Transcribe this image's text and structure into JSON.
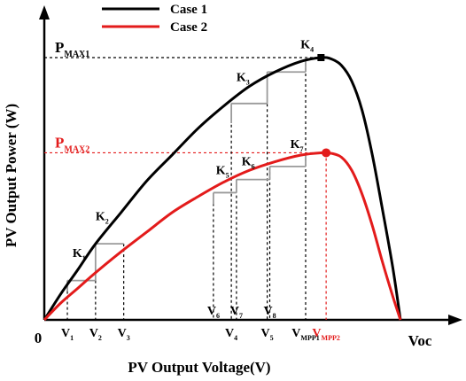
{
  "chart_data": {
    "type": "line",
    "xlabel": "PV Output Voltage(V)",
    "ylabel": "PV Output Power (W)",
    "colors": {
      "case1": "#000000",
      "case2": "#e31b1b",
      "steps": "#9a9a9a"
    },
    "legend": {
      "placement": "top",
      "entries": [
        {
          "label": "Case 1",
          "color": "#000000"
        },
        {
          "label": "Case 2",
          "color": "#e31b1b"
        }
      ]
    },
    "axis_labels": {
      "origin": "0",
      "voc": "Voc"
    },
    "series": [
      {
        "name": "Case 1",
        "color": "#000000",
        "points": [
          [
            0,
            0
          ],
          [
            6.5,
            10
          ],
          [
            13,
            19
          ],
          [
            20,
            29
          ],
          [
            30,
            41
          ],
          [
            40,
            53
          ],
          [
            50,
            63
          ],
          [
            60,
            73
          ],
          [
            70,
            81.5
          ],
          [
            80,
            89
          ],
          [
            90,
            94.5
          ],
          [
            100,
            98.5
          ],
          [
            108,
            100
          ],
          [
            112,
            99.5
          ],
          [
            116,
            97
          ],
          [
            120,
            91
          ],
          [
            124,
            80
          ],
          [
            128,
            63
          ],
          [
            132,
            42
          ],
          [
            136,
            20
          ],
          [
            139,
            0
          ]
        ]
      },
      {
        "name": "Case 2",
        "color": "#e31b1b",
        "points": [
          [
            0,
            0
          ],
          [
            6.5,
            6.5
          ],
          [
            13,
            12
          ],
          [
            20,
            18
          ],
          [
            30,
            26
          ],
          [
            40,
            33.5
          ],
          [
            50,
            41
          ],
          [
            60,
            47
          ],
          [
            70,
            52.5
          ],
          [
            80,
            57
          ],
          [
            90,
            60.3
          ],
          [
            100,
            62.8
          ],
          [
            108,
            63.7
          ],
          [
            112,
            63.5
          ],
          [
            116,
            62
          ],
          [
            120,
            57
          ],
          [
            124,
            48
          ],
          [
            128,
            36
          ],
          [
            132,
            22
          ],
          [
            136,
            9
          ],
          [
            139,
            0
          ]
        ]
      }
    ],
    "pmax_labels": [
      {
        "main": "P",
        "sub": "MAX1",
        "y": 100,
        "color": "#000000"
      },
      {
        "main": "P",
        "sub": "MAX2",
        "y": 63.7,
        "color": "#e31b1b"
      }
    ],
    "mpp_markers": [
      {
        "x": 108,
        "y": 100,
        "color": "#000000",
        "shape": "square"
      },
      {
        "x": 110,
        "y": 63.7,
        "color": "#e31b1b",
        "shape": "circle"
      }
    ],
    "steps": [
      {
        "k": "K",
        "sub": "1",
        "x1": 9,
        "x2": 20,
        "y": 15,
        "label_x": 11,
        "label_y": 24
      },
      {
        "k": "K",
        "sub": "2",
        "x1": 20,
        "x2": 31,
        "y": 29,
        "label_x": 20,
        "label_y": 38
      },
      {
        "k": "K",
        "sub": "3",
        "x1": 73,
        "x2": 87,
        "y": 82.5,
        "label_x": 75,
        "label_y": 91
      },
      {
        "k": "K",
        "sub": "4",
        "x1": 87,
        "x2": 102,
        "y": 94.5,
        "label_x": 100,
        "label_y": 103.5
      },
      {
        "k": "K",
        "sub": "5",
        "x1": 66,
        "x2": 75,
        "y": 48.5,
        "label_x": 67,
        "label_y": 55.5
      },
      {
        "k": "K",
        "sub": "6",
        "x1": 75,
        "x2": 88,
        "y": 53.5,
        "label_x": 77,
        "label_y": 59
      },
      {
        "k": "K",
        "sub": "7",
        "x1": 88,
        "x2": 102,
        "y": 58.5,
        "label_x": 96,
        "label_y": 65.5
      }
    ],
    "voltage_ticks": [
      {
        "main": "V",
        "sub": "1",
        "x": 9,
        "label_y": -6.5,
        "line_top": 15,
        "color": "#000000"
      },
      {
        "main": "V",
        "sub": "2",
        "x": 20,
        "label_y": -6.5,
        "line_top": 15,
        "color": "#000000"
      },
      {
        "main": "V",
        "sub": "3",
        "x": 31,
        "label_y": -6.5,
        "line_top": 29,
        "color": "#000000"
      },
      {
        "main": "V",
        "sub": "4",
        "x": 73,
        "label_y": -6.5,
        "line_top": 82.5,
        "color": "#000000"
      },
      {
        "main": "V",
        "sub": "5",
        "x": 87,
        "label_y": -6.5,
        "line_top": 94.5,
        "color": "#000000"
      },
      {
        "main": "V",
        "sub": "MPP1",
        "x": 102,
        "label_y": -6.5,
        "line_top": 100,
        "color": "#000000"
      },
      {
        "main": "V",
        "sub": "MPP2",
        "x": 110,
        "label_y": -6.5,
        "line_top": 63.7,
        "color": "#e31b1b"
      },
      {
        "main": "V",
        "sub": "6",
        "x": 66,
        "label_y": 2,
        "line_top": 48.5,
        "color": "#000000"
      },
      {
        "main": "V",
        "sub": "7",
        "x": 75,
        "label_y": 2,
        "line_top": 53.5,
        "color": "#000000"
      },
      {
        "main": "V",
        "sub": "8",
        "x": 88,
        "label_y": 2,
        "line_top": 58.5,
        "color": "#000000"
      }
    ],
    "xlim": [
      0,
      139
    ],
    "ylim": [
      0,
      100
    ],
    "grid": false
  }
}
